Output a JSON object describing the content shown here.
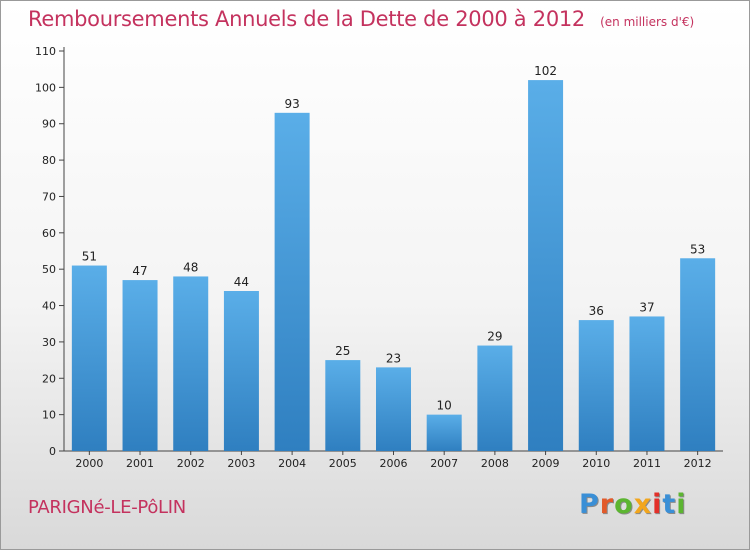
{
  "title": "Remboursements Annuels de la Dette de 2000 à 2012",
  "subtitle": "(en milliers d'€)",
  "commune": "PARIGNé-LE-PôLIN",
  "logo": {
    "letters": [
      "P",
      "r",
      "o",
      "x",
      "i",
      "t",
      "i"
    ],
    "colors": [
      "#3a8fd6",
      "#e25a2a",
      "#5cb531",
      "#f2a61d",
      "#e2302a",
      "#3a8fd6",
      "#5cb531"
    ]
  },
  "colors": {
    "bar_top": "#5aaee8",
    "bar_bottom": "#2f7fc0",
    "title": "#c4325e"
  },
  "chart_data": {
    "type": "bar",
    "title": "Remboursements Annuels de la Dette de 2000 à 2012",
    "subtitle": "(en milliers d'€)",
    "categories": [
      "2000",
      "2001",
      "2002",
      "2003",
      "2004",
      "2005",
      "2006",
      "2007",
      "2008",
      "2009",
      "2010",
      "2011",
      "2012"
    ],
    "values": [
      51,
      47,
      48,
      44,
      93,
      25,
      23,
      10,
      29,
      102,
      36,
      37,
      53
    ],
    "ylim": [
      0,
      110
    ],
    "yticks": [
      0,
      10,
      20,
      30,
      40,
      50,
      60,
      70,
      80,
      90,
      100,
      110
    ],
    "grid": false,
    "xlabel": "",
    "ylabel": ""
  }
}
